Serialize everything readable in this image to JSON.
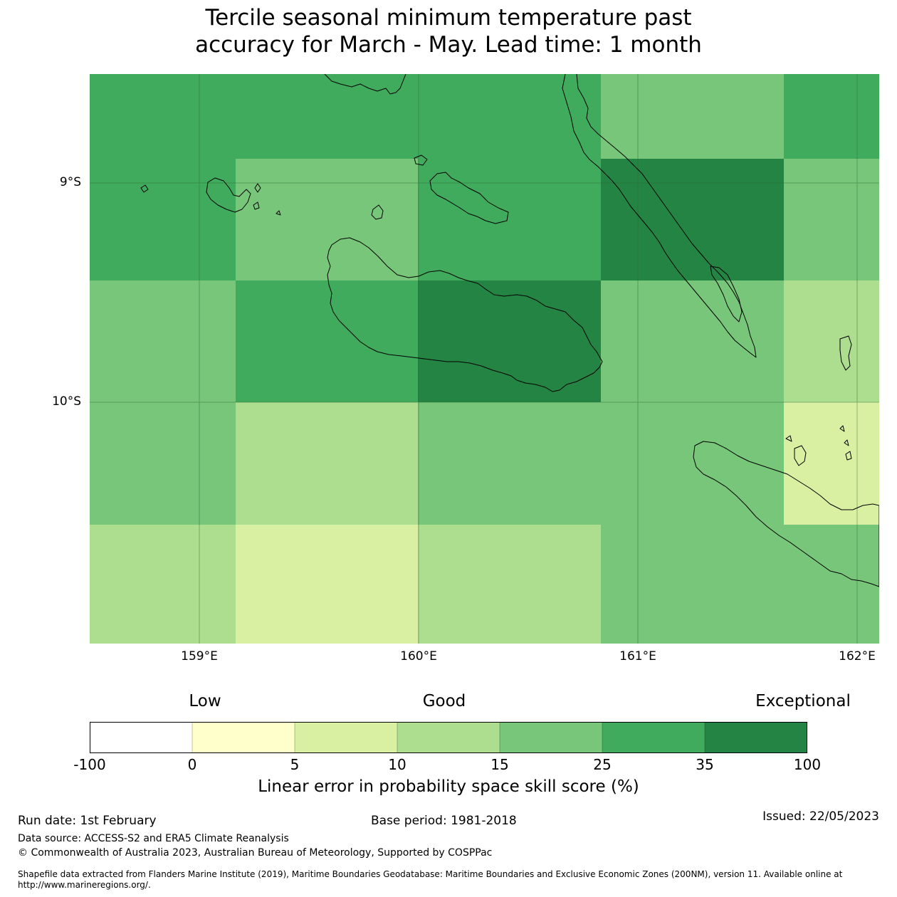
{
  "title_line1": "Tercile seasonal minimum temperature past",
  "title_line2": "accuracy for March - May. Lead time: 1 month",
  "map": {
    "lon_range": [
      158.5,
      162.1
    ],
    "lat_range": [
      -8.5,
      -11.1
    ],
    "lat_labels": [
      "9°S",
      "10°S"
    ],
    "lat_values": [
      -9,
      -10
    ],
    "lon_labels": [
      "159°E",
      "160°E",
      "161°E",
      "162°E"
    ],
    "lon_values": [
      159,
      160,
      161,
      162
    ],
    "colors": {
      "c0": "#ffffcc",
      "c1": "#d9f0a3",
      "c2": "#addd8e",
      "c3": "#78c679",
      "c4": "#41ab5d",
      "c5": "#238443",
      "coast": "#000000",
      "grid": "#2c6b39"
    }
  },
  "legend": {
    "category_low": "Low",
    "category_good": "Good",
    "category_exceptional": "Exceptional",
    "ticks": [
      "-100",
      "0",
      "5",
      "10",
      "15",
      "25",
      "35",
      "100"
    ],
    "colors": [
      "#ffffff",
      "#ffffcc",
      "#d9f0a3",
      "#addd8e",
      "#78c679",
      "#41ab5d",
      "#238443"
    ],
    "title": "Linear error in probability space skill score (%)"
  },
  "footer": {
    "run_date": "Run date: 1st February",
    "base_period": "Base period: 1981-2018",
    "issued": "Issued: 22/05/2023",
    "data_source": "Data source: ACCESS-S2 and ERA5 Climate Reanalysis",
    "copyright": "© Commonwealth of Australia 2023, Australian Bureau of Meteorology, Supported by COSPPac",
    "shapefile_line1": "Shapefile data extracted from Flanders Marine Institute (2019), Maritime Boundaries Geodatabase: Maritime Boundaries and Exclusive Economic Zones (200NM), version 11. Available online at",
    "shapefile_line2": "http://www.marineregions.org/."
  }
}
